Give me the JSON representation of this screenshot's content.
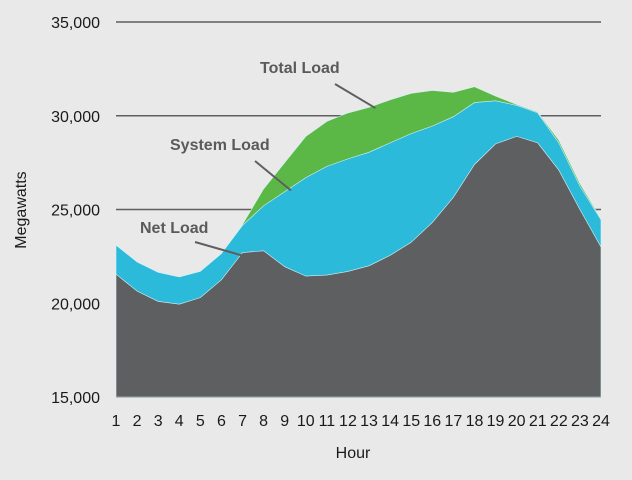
{
  "chart_data": {
    "type": "area",
    "xlabel": "Hour",
    "ylabel": "Megawatts",
    "ylim": [
      15000,
      35000
    ],
    "yticks": [
      15000,
      20000,
      25000,
      30000,
      35000
    ],
    "ytick_labels": [
      "15,000",
      "20,000",
      "25,000",
      "30,000",
      "35,000"
    ],
    "x": [
      1,
      2,
      3,
      4,
      5,
      6,
      7,
      8,
      9,
      10,
      11,
      12,
      13,
      14,
      15,
      16,
      17,
      18,
      19,
      20,
      21,
      22,
      23,
      24
    ],
    "x_labels": [
      "1",
      "2",
      "3",
      "4",
      "5",
      "6",
      "7",
      "8",
      "9",
      "10",
      "11",
      "12",
      "13",
      "14",
      "15",
      "16",
      "17",
      "18",
      "19",
      "20",
      "21",
      "22",
      "23",
      "24"
    ],
    "grid": "horizontal",
    "series": [
      {
        "name": "Total Load",
        "color": "#5cb846",
        "values": [
          23100,
          22200,
          21650,
          21400,
          21700,
          22650,
          24200,
          26100,
          27500,
          28900,
          29700,
          30150,
          30450,
          30850,
          31200,
          31350,
          31250,
          31550,
          31050,
          30600,
          30200,
          28700,
          26400,
          24500
        ]
      },
      {
        "name": "System Load",
        "color": "#2cbadb",
        "values": [
          23100,
          22200,
          21650,
          21400,
          21700,
          22650,
          24150,
          25200,
          25950,
          26700,
          27300,
          27700,
          28050,
          28550,
          29050,
          29450,
          29950,
          30700,
          30800,
          30550,
          30150,
          28550,
          26250,
          24450
        ]
      },
      {
        "name": "Net Load",
        "color": "#5e5f61",
        "values": [
          21550,
          20650,
          20100,
          19950,
          20300,
          21250,
          22700,
          22800,
          21950,
          21450,
          21500,
          21700,
          22000,
          22550,
          23250,
          24300,
          25650,
          27400,
          28500,
          28900,
          28550,
          27100,
          25000,
          23000
        ]
      }
    ],
    "annotations": [
      {
        "text": "Total Load",
        "series": "Total Load"
      },
      {
        "text": "System Load",
        "series": "System Load"
      },
      {
        "text": "Net Load",
        "series": "Net Load"
      }
    ]
  }
}
